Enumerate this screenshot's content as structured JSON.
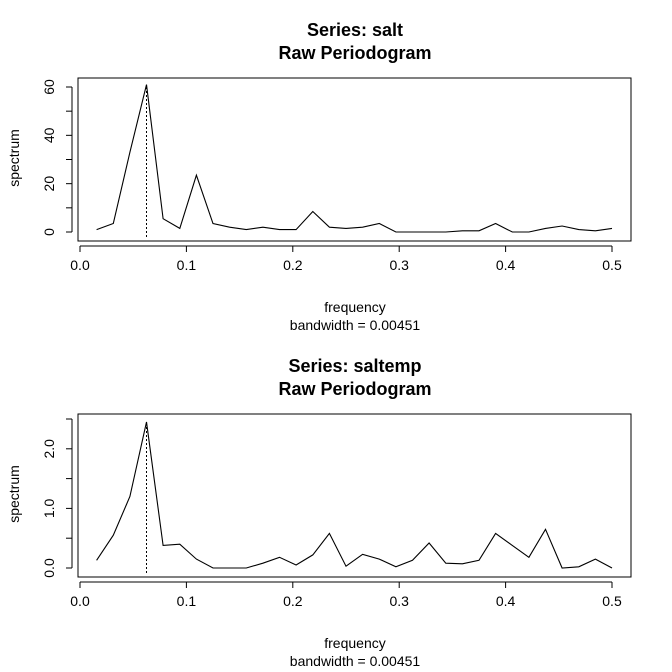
{
  "chart_data": [
    {
      "type": "line",
      "title": "Series: salt",
      "subtitle": "Raw Periodogram",
      "xlabel": "frequency",
      "xlabel2": "bandwidth = 0.00451",
      "ylabel": "spectrum",
      "xlim": [
        0.0,
        0.5
      ],
      "ylim": [
        0,
        60
      ],
      "xticks": [
        "0.0",
        "0.1",
        "0.2",
        "0.3",
        "0.4",
        "0.5"
      ],
      "yticks": [
        "0",
        "20",
        "40",
        "60"
      ],
      "grid": false,
      "vline_x": 0.0625,
      "x": [
        0.015625,
        0.03125,
        0.046875,
        0.0625,
        0.078125,
        0.09375,
        0.109375,
        0.125,
        0.140625,
        0.15625,
        0.171875,
        0.1875,
        0.203125,
        0.21875,
        0.234375,
        0.25,
        0.265625,
        0.28125,
        0.296875,
        0.3125,
        0.328125,
        0.34375,
        0.359375,
        0.375,
        0.390625,
        0.40625,
        0.421875,
        0.4375,
        0.453125,
        0.46875,
        0.484375,
        0.5
      ],
      "series": [
        {
          "values": [
            1.0,
            3.5,
            33.0,
            61.0,
            5.5,
            1.5,
            23.5,
            3.5,
            2.0,
            1.0,
            2.0,
            1.0,
            1.0,
            8.5,
            2.0,
            1.5,
            2.0,
            3.5,
            0.0,
            0.0,
            0.0,
            0.0,
            0.5,
            0.5,
            3.5,
            0.0,
            0.0,
            1.5,
            2.5,
            1.0,
            0.5,
            1.5
          ]
        }
      ]
    },
    {
      "type": "line",
      "title": "Series: saltemp",
      "subtitle": "Raw Periodogram",
      "xlabel": "frequency",
      "xlabel2": "bandwidth = 0.00451",
      "ylabel": "spectrum",
      "xlim": [
        0.0,
        0.5
      ],
      "ylim": [
        0,
        2.5
      ],
      "xticks": [
        "0.0",
        "0.1",
        "0.2",
        "0.3",
        "0.4",
        "0.5"
      ],
      "yticks": [
        "0.0",
        "1.0",
        "2.0"
      ],
      "grid": false,
      "vline_x": 0.0625,
      "x": [
        0.015625,
        0.03125,
        0.046875,
        0.0625,
        0.078125,
        0.09375,
        0.109375,
        0.125,
        0.140625,
        0.15625,
        0.171875,
        0.1875,
        0.203125,
        0.21875,
        0.234375,
        0.25,
        0.265625,
        0.28125,
        0.296875,
        0.3125,
        0.328125,
        0.34375,
        0.359375,
        0.375,
        0.390625,
        0.40625,
        0.421875,
        0.4375,
        0.453125,
        0.46875,
        0.484375,
        0.5
      ],
      "series": [
        {
          "values": [
            0.13,
            0.55,
            1.2,
            2.45,
            0.38,
            0.4,
            0.15,
            0.0,
            0.0,
            0.0,
            0.08,
            0.18,
            0.05,
            0.22,
            0.58,
            0.03,
            0.23,
            0.15,
            0.02,
            0.13,
            0.42,
            0.08,
            0.07,
            0.13,
            0.58,
            0.38,
            0.18,
            0.65,
            0.0,
            0.02,
            0.15,
            0.0
          ]
        }
      ]
    }
  ]
}
